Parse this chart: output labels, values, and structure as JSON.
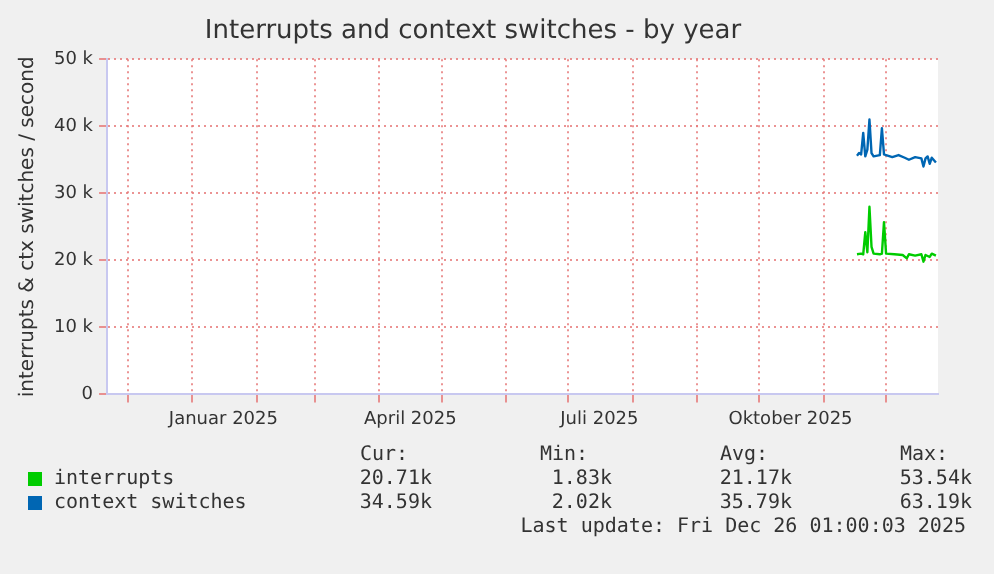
{
  "chart_data": {
    "type": "line",
    "title": "Interrupts and context switches - by year",
    "ylabel": "interrupts & ctx switches / second",
    "xlim": [
      "2024-11-21",
      "2025-12-26"
    ],
    "xticks": [
      {
        "value": "2024-12-01",
        "label": null
      },
      {
        "value": "2025-01-01",
        "label": null
      },
      {
        "value": "2025-01-16",
        "label": "Januar 2025"
      },
      {
        "value": "2025-02-01",
        "label": null
      },
      {
        "value": "2025-03-01",
        "label": null
      },
      {
        "value": "2025-04-01",
        "label": null
      },
      {
        "value": "2025-04-16",
        "label": "April 2025"
      },
      {
        "value": "2025-05-01",
        "label": null
      },
      {
        "value": "2025-06-01",
        "label": null
      },
      {
        "value": "2025-07-01",
        "label": null
      },
      {
        "value": "2025-07-16",
        "label": "Juli 2025"
      },
      {
        "value": "2025-08-01",
        "label": null
      },
      {
        "value": "2025-09-01",
        "label": null
      },
      {
        "value": "2025-10-01",
        "label": null
      },
      {
        "value": "2025-10-16",
        "label": "Oktober 2025"
      },
      {
        "value": "2025-11-01",
        "label": null
      },
      {
        "value": "2025-12-01",
        "label": null
      }
    ],
    "ylim": [
      0,
      50000
    ],
    "yticks": [
      0,
      {
        "value": 10000,
        "label": "10 k"
      },
      {
        "value": 20000,
        "label": "20 k"
      },
      {
        "value": 30000,
        "label": "30 k"
      },
      {
        "value": 40000,
        "label": "40 k"
      },
      {
        "value": 50000,
        "label": "50 k"
      }
    ],
    "grid": true,
    "legend": "bottom",
    "marker": "none",
    "line_style": "solid",
    "annotations": [
      "Cur:",
      "Min:",
      "Avg:",
      "Max:",
      "20.71k",
      "1.83k",
      "21.17k",
      "53.54k",
      "34.59k",
      "2.02k",
      "35.79k",
      "63.19k",
      "Last update: Fri Dec 26 01:00:03 2025"
    ],
    "series": [
      {
        "name": "interrupts",
        "color": "#00cc00",
        "x": [
          "2025-11-17",
          "2025-11-19",
          "2025-11-20",
          "2025-11-21",
          "2025-11-22",
          "2025-11-23",
          "2025-11-24",
          "2025-11-25",
          "2025-11-28",
          "2025-11-29",
          "2025-11-30",
          "2025-12-01",
          "2025-12-05",
          "2025-12-09",
          "2025-12-11",
          "2025-12-12",
          "2025-12-15",
          "2025-12-18",
          "2025-12-19",
          "2025-12-20",
          "2025-12-22",
          "2025-12-23",
          "2025-12-25"
        ],
        "values": [
          20900,
          21000,
          20900,
          24200,
          21200,
          28000,
          22000,
          21000,
          20900,
          21000,
          25700,
          21000,
          20900,
          20800,
          20300,
          20900,
          20700,
          20900,
          19800,
          20800,
          20500,
          21000,
          20700
        ]
      },
      {
        "name": "context switches",
        "color": "#0066b3",
        "x": [
          "2025-11-17",
          "2025-11-18",
          "2025-11-19",
          "2025-11-20",
          "2025-11-21",
          "2025-11-22",
          "2025-11-23",
          "2025-11-24",
          "2025-11-25",
          "2025-11-28",
          "2025-11-29",
          "2025-11-30",
          "2025-12-01",
          "2025-12-04",
          "2025-12-07",
          "2025-12-10",
          "2025-12-12",
          "2025-12-15",
          "2025-12-18",
          "2025-12-19",
          "2025-12-20",
          "2025-12-21",
          "2025-12-22",
          "2025-12-23",
          "2025-12-25"
        ],
        "values": [
          35600,
          36000,
          35800,
          39000,
          35500,
          36500,
          41000,
          36000,
          35500,
          35700,
          39700,
          35800,
          35700,
          35400,
          35700,
          35300,
          35000,
          35400,
          35200,
          34000,
          35200,
          35500,
          34400,
          35300,
          34600
        ]
      }
    ]
  }
}
